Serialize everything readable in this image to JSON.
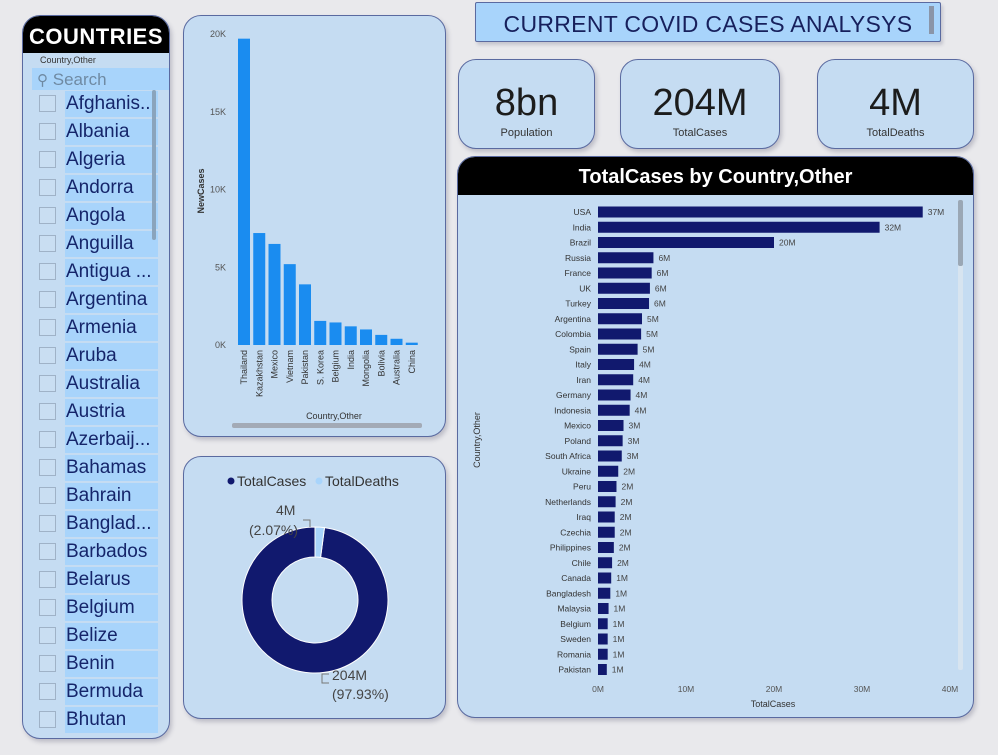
{
  "slicer": {
    "title": "COUNTRIES",
    "field": "Country,Other",
    "search_placeholder": "Search",
    "items": [
      "Afghanis...",
      "Albania",
      "Algeria",
      "Andorra",
      "Angola",
      "Anguilla",
      "Antigua ...",
      "Argentina",
      "Armenia",
      "Aruba",
      "Australia",
      "Austria",
      "Azerbaij...",
      "Bahamas",
      "Bahrain",
      "Banglad...",
      "Barbados",
      "Belarus",
      "Belgium",
      "Belize",
      "Benin",
      "Bermuda",
      "Bhutan"
    ]
  },
  "header": {
    "title": "CURRENT COVID CASES ANALYSYS"
  },
  "cards": [
    {
      "value": "8bn",
      "label": "Population"
    },
    {
      "value": "204M",
      "label": "TotalCases"
    },
    {
      "value": "4M",
      "label": "TotalDeaths"
    }
  ],
  "colors": {
    "bar_light": "#1a8cf0",
    "bar_dark": "#11196e",
    "deaths_slice": "#a8d4fb",
    "panel_bg": "#c5dcf2"
  },
  "chart_data": [
    {
      "type": "bar",
      "categories": [
        "Thailand",
        "Kazakhstan",
        "Mexico",
        "Vietnam",
        "Pakistan",
        "S. Korea",
        "Belgium",
        "India",
        "Mongolia",
        "Bolivia",
        "Australia",
        "China"
      ],
      "values": [
        19700,
        7200,
        6500,
        5200,
        3900,
        1550,
        1450,
        1200,
        1000,
        650,
        400,
        150
      ],
      "xlabel": "Country,Other",
      "ylabel": "NewCases",
      "yticks": [
        "0K",
        "5K",
        "10K",
        "15K",
        "20K"
      ],
      "ylim": [
        0,
        20000
      ],
      "grid": false
    },
    {
      "type": "pie",
      "donut": true,
      "legend": [
        "TotalCases",
        "TotalDeaths"
      ],
      "legend_position": "top",
      "slices": [
        {
          "name": "TotalCases",
          "value": 204,
          "label": "204M",
          "percent": "(97.93%)"
        },
        {
          "name": "TotalDeaths",
          "value": 4.32,
          "label": "4M",
          "percent": "(2.07%)"
        }
      ]
    },
    {
      "type": "bar",
      "orientation": "horizontal",
      "title": "TotalCases by Country,Other",
      "xlabel": "TotalCases",
      "ylabel": "Country,Other",
      "xlim": [
        0,
        40
      ],
      "xticks": [
        "0M",
        "10M",
        "20M",
        "30M",
        "40M"
      ],
      "categories": [
        "USA",
        "India",
        "Brazil",
        "Russia",
        "France",
        "UK",
        "Turkey",
        "Argentina",
        "Colombia",
        "Spain",
        "Italy",
        "Iran",
        "Germany",
        "Indonesia",
        "Mexico",
        "Poland",
        "South Africa",
        "Ukraine",
        "Peru",
        "Netherlands",
        "Iraq",
        "Czechia",
        "Philippines",
        "Chile",
        "Canada",
        "Bangladesh",
        "Malaysia",
        "Belgium",
        "Sweden",
        "Romania",
        "Pakistan"
      ],
      "values": [
        36.9,
        32.0,
        20.0,
        6.3,
        6.1,
        5.9,
        5.8,
        5.0,
        4.9,
        4.5,
        4.1,
        4.0,
        3.7,
        3.6,
        2.9,
        2.8,
        2.7,
        2.3,
        2.1,
        2.0,
        1.9,
        1.9,
        1.8,
        1.6,
        1.5,
        1.4,
        1.2,
        1.1,
        1.1,
        1.1,
        1.0
      ],
      "data_labels": [
        "37M",
        "32M",
        "20M",
        "6M",
        "6M",
        "6M",
        "6M",
        "5M",
        "5M",
        "5M",
        "4M",
        "4M",
        "4M",
        "4M",
        "3M",
        "3M",
        "3M",
        "2M",
        "2M",
        "2M",
        "2M",
        "2M",
        "2M",
        "2M",
        "1M",
        "1M",
        "1M",
        "1M",
        "1M",
        "1M",
        "1M"
      ],
      "grid": false
    }
  ]
}
